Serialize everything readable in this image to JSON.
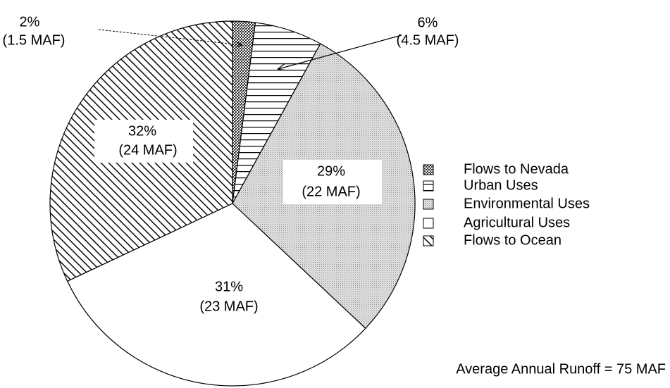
{
  "chart_data": {
    "type": "pie",
    "categories": [
      "Flows to Nevada",
      "Urban Uses",
      "Environmental Uses",
      "Agricultural  Uses",
      "Flows to Ocean"
    ],
    "values": [
      2,
      6,
      29,
      31,
      32
    ],
    "value_labels": [
      "2%",
      "6%",
      "29%",
      "31%",
      "32%"
    ],
    "detail_labels": [
      "(1.5  MAF)",
      "(4.5  MAF)",
      "(22  MAF)",
      "(23  MAF)",
      "(24  MAF)"
    ],
    "note": "Average Annual Runoff = 75 MAF"
  }
}
